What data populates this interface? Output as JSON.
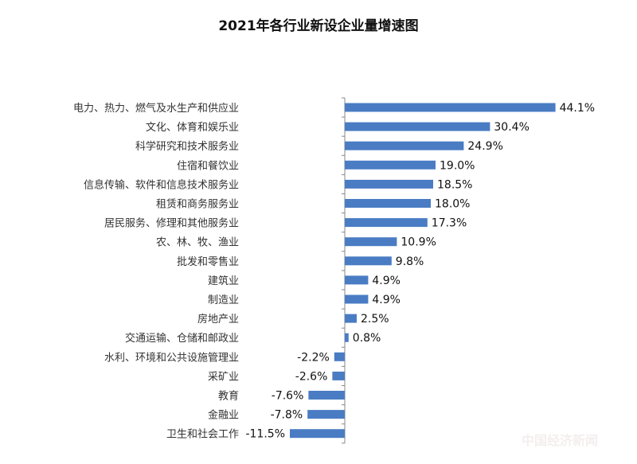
{
  "chart_data": {
    "type": "bar",
    "orientation": "horizontal",
    "title": "2021年各行业新设企业量增速图",
    "xlabel": "",
    "ylabel": "",
    "value_suffix": "%",
    "xlim": [
      -11.5,
      44.1
    ],
    "grid": false,
    "legend": "none",
    "bar_color": "#4a7cc4",
    "categories": [
      "电力、热力、燃气及水生产和供应业",
      "文化、体育和娱乐业",
      "科学研究和技术服务业",
      "住宿和餐饮业",
      "信息传输、软件和信息技术服务业",
      "租赁和商务服务业",
      "居民服务、修理和其他服务业",
      "农、林、牧、渔业",
      "批发和零售业",
      "建筑业",
      "制造业",
      "房地产业",
      "交通运输、仓储和邮政业",
      "水利、环境和公共设施管理业",
      "采矿业",
      "教育",
      "金融业",
      "卫生和社会工作"
    ],
    "values": [
      44.1,
      30.4,
      24.9,
      19.0,
      18.5,
      18.0,
      17.3,
      10.9,
      9.8,
      4.9,
      4.9,
      2.5,
      0.8,
      -2.2,
      -2.6,
      -7.6,
      -7.8,
      -11.5
    ],
    "labels": [
      "44.1%",
      "30.4%",
      "24.9%",
      "19.0%",
      "18.5%",
      "18.0%",
      "17.3%",
      "10.9%",
      "9.8%",
      "4.9%",
      "4.9%",
      "2.5%",
      "0.8%",
      "-2.2%",
      "-2.6%",
      "-7.6%",
      "-7.8%",
      "-11.5%"
    ]
  },
  "watermark": "中国经济新闻"
}
